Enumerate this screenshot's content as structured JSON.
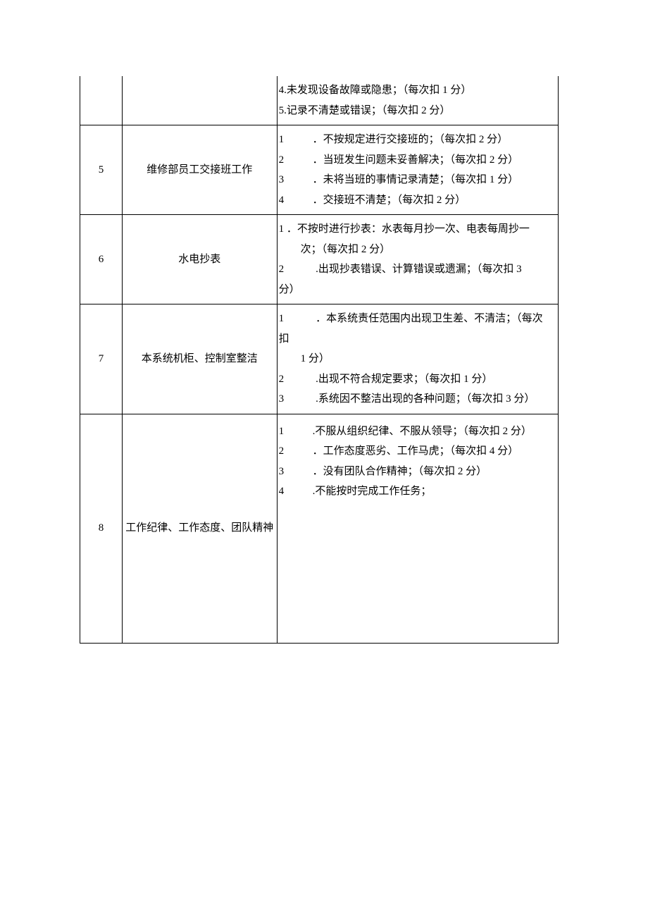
{
  "table": {
    "colors": {
      "border": "#000000",
      "text": "#000000",
      "background": "#ffffff"
    },
    "rows": [
      {
        "num": "",
        "title": "",
        "items": [
          {
            "n": "4",
            "t": ".未发现设备故障或隐患；（每次扣 1 分）",
            "tight": true
          },
          {
            "n": "5",
            "t": ".记录不清楚或错误；（每次扣 2 分）",
            "tight": true
          }
        ]
      },
      {
        "num": "5",
        "title": "维修部员工交接班工作",
        "items": [
          {
            "n": "1",
            "t": "．不按规定进行交接班的；（每次扣 2 分）"
          },
          {
            "n": "2",
            "t": "．当班发生问题未妥善解决；（每次扣 2 分）"
          },
          {
            "n": "3",
            "t": "．未将当班的事情记录清楚；（每次扣 1 分）"
          },
          {
            "n": "4",
            "t": "．交接班不清楚；（每次扣 2 分）"
          }
        ]
      },
      {
        "num": "6",
        "title": "水电抄表",
        "items_raw": [
          "1 ．不按时进行抄表：水表每月抄一次、电表每周抄一",
          "　次；（每次扣 2 分）",
          "2　　　.出现抄表错误、计算错误或遗漏；（每次扣 3",
          "分）"
        ]
      },
      {
        "num": "7",
        "title": "本系统机柜、控制室整洁",
        "items_raw": [
          "1　　　．本系统责任范围内出现卫生差、不清洁；（每次",
          "扣",
          "　1 分）",
          "2　　　.出现不符合规定要求；（每次扣 1 分）",
          "3　　　.系统因不整洁出现的各种问题；（每次扣 3 分）"
        ]
      },
      {
        "num": "8",
        "title": "工作纪律、工作态度、团队精神",
        "items": [
          {
            "n": "1",
            "t": ".不服从组织纪律、不服从领导；（每次扣 2 分）"
          },
          {
            "n": "2",
            "t": "．工作态度恶劣、工作马虎；（每次扣 4 分）"
          },
          {
            "n": "3",
            "t": "．没有团队合作精神；（每次扣 2 分）"
          },
          {
            "n": "4",
            "t": ".不能按时完成工作任务；"
          }
        ]
      }
    ]
  }
}
